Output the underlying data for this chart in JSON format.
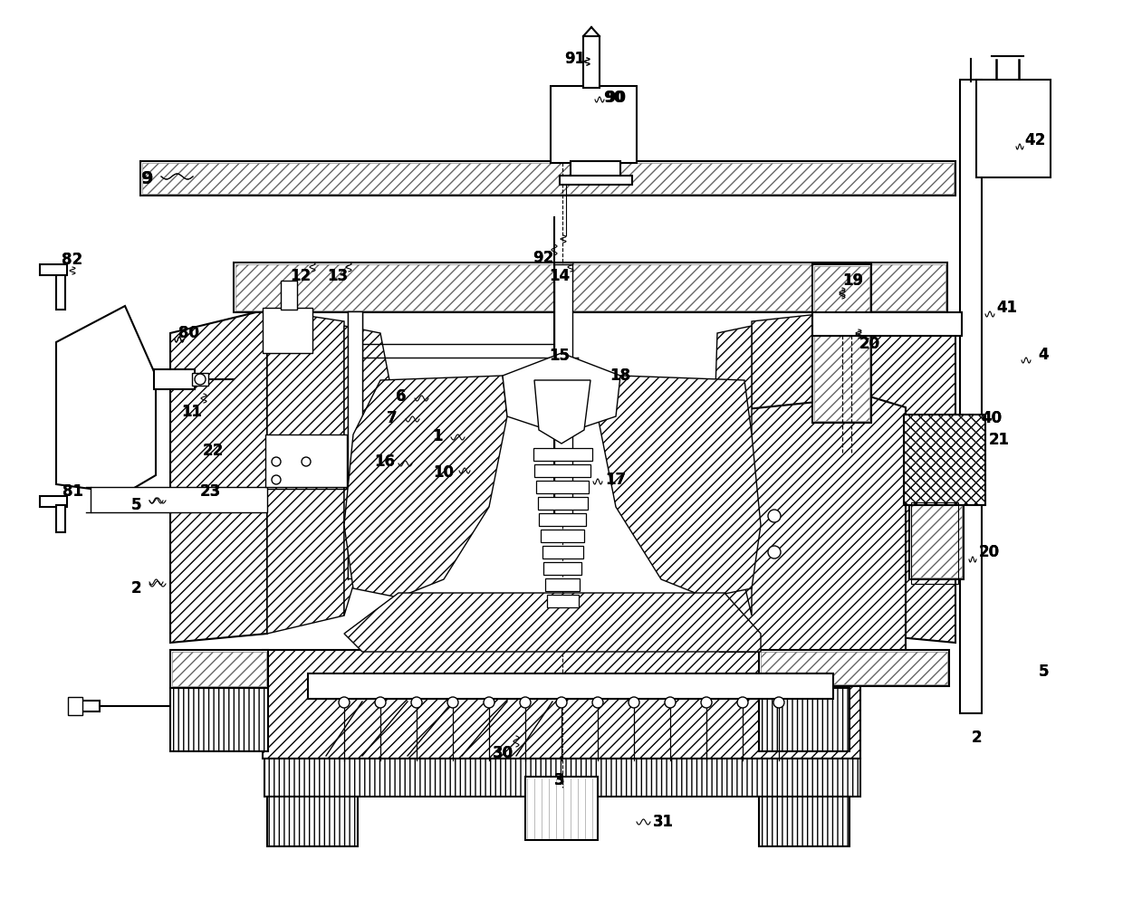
{
  "bg_color": "#ffffff",
  "fig_width": 12.4,
  "fig_height": 10.02,
  "dpi": 100
}
